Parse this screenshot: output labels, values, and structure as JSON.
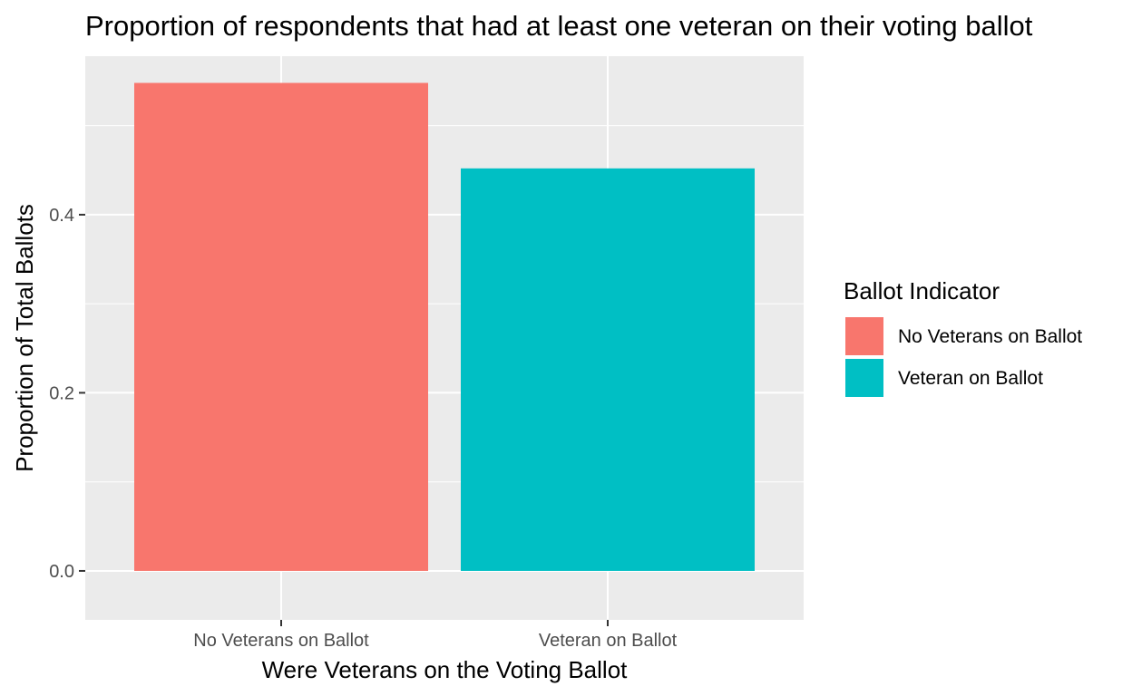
{
  "chart_data": {
    "type": "bar",
    "title": "Proportion of respondents that had at least one veteran on their voting ballot",
    "xlabel": "Were Veterans on the Voting Ballot",
    "ylabel": "Proportion of Total Ballots",
    "categories": [
      "No Veterans on Ballot",
      "Veteran on Ballot"
    ],
    "values": [
      0.548,
      0.452
    ],
    "colors": [
      "#F8766D",
      "#00BFC4"
    ],
    "ylim": [
      -0.055,
      0.578
    ],
    "yticks": [
      0.0,
      0.2,
      0.4
    ],
    "ytick_labels": [
      "0.0",
      "0.2",
      "0.4"
    ],
    "grid": true,
    "legend": {
      "title": "Ballot Indicator",
      "position": "right",
      "entries": [
        "No Veterans on Ballot",
        "Veteran on Ballot"
      ]
    }
  }
}
